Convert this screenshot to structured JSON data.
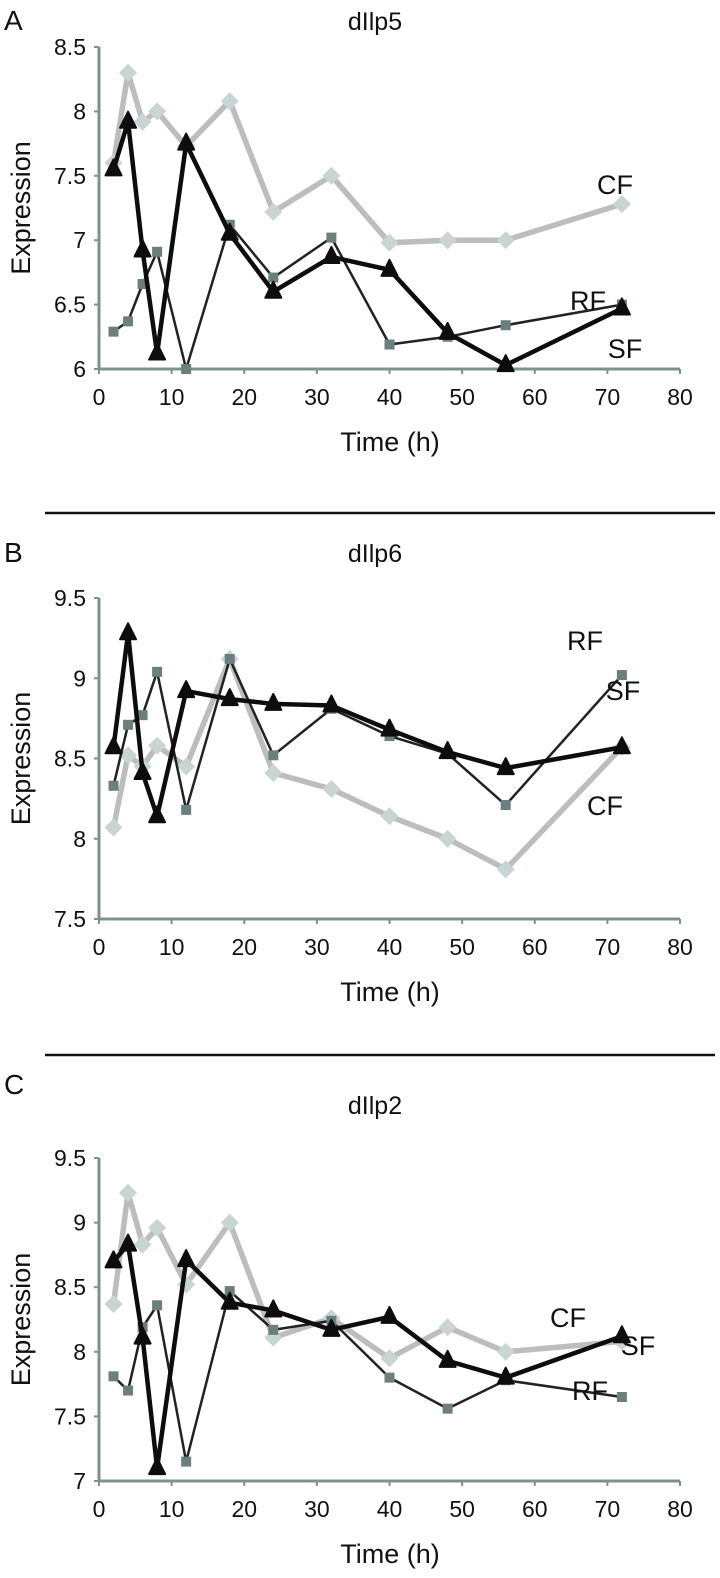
{
  "colors": {
    "CF_line": "#bdbdbd",
    "CF_marker": "#c9d5d5",
    "SF": "#0d0d0d",
    "RF_line": "#222222",
    "RF_marker": "#6c7f7f",
    "axis": "#7f9090"
  },
  "chart_data": [
    {
      "panel": "A",
      "type": "line",
      "title": "dIlp5",
      "xlabel": "Time (h)",
      "ylabel": "Expression",
      "xlim": [
        0,
        80
      ],
      "ylim": [
        6,
        8.5
      ],
      "xticks": [
        "0",
        "10",
        "20",
        "30",
        "40",
        "50",
        "60",
        "70",
        "80"
      ],
      "yticks": [
        "6",
        "6.5",
        "7",
        "7.5",
        "8",
        "8.5"
      ],
      "x": [
        2,
        4,
        6,
        8,
        12,
        18,
        24,
        32,
        40,
        48,
        56,
        72
      ],
      "series": [
        {
          "name": "CF",
          "values": [
            7.6,
            8.3,
            7.92,
            8.0,
            7.73,
            8.08,
            7.22,
            7.5,
            6.98,
            7.0,
            7.0,
            7.28
          ]
        },
        {
          "name": "SF",
          "values": [
            7.55,
            7.92,
            6.92,
            6.12,
            7.75,
            7.05,
            6.6,
            6.87,
            6.77,
            6.28,
            6.03,
            6.47
          ]
        },
        {
          "name": "RF",
          "values": [
            6.29,
            6.37,
            6.66,
            6.91,
            5.95,
            7.12,
            6.71,
            7.02,
            6.19,
            6.25,
            6.34,
            6.5
          ]
        }
      ]
    },
    {
      "panel": "B",
      "type": "line",
      "title": "dIlp6",
      "xlabel": "Time (h)",
      "ylabel": "Expression",
      "xlim": [
        0,
        80
      ],
      "ylim": [
        7.5,
        9.5
      ],
      "xticks": [
        "0",
        "10",
        "20",
        "30",
        "40",
        "50",
        "60",
        "70",
        "80"
      ],
      "yticks": [
        "7.5",
        "8",
        "8.5",
        "9",
        "9.5"
      ],
      "x": [
        2,
        4,
        6,
        8,
        12,
        18,
        24,
        32,
        40,
        48,
        56,
        72
      ],
      "series": [
        {
          "name": "CF",
          "values": [
            8.07,
            8.52,
            8.45,
            8.58,
            8.45,
            9.12,
            8.41,
            8.31,
            8.14,
            8.0,
            7.81,
            8.57
          ]
        },
        {
          "name": "SF",
          "values": [
            8.57,
            9.28,
            8.41,
            8.14,
            8.92,
            8.87,
            8.84,
            8.83,
            8.68,
            8.54,
            8.44,
            8.57
          ]
        },
        {
          "name": "RF",
          "values": [
            8.33,
            8.71,
            8.77,
            9.04,
            8.18,
            9.12,
            8.52,
            8.81,
            8.64,
            8.53,
            8.21,
            9.02
          ]
        }
      ]
    },
    {
      "panel": "C",
      "type": "line",
      "title": "dIlp2",
      "xlabel": "Time (h)",
      "ylabel": "Expression",
      "xlim": [
        0,
        80
      ],
      "ylim": [
        7,
        9.5
      ],
      "xticks": [
        "0",
        "10",
        "20",
        "30",
        "40",
        "50",
        "60",
        "70",
        "80"
      ],
      "yticks": [
        "7",
        "7.5",
        "8",
        "8.5",
        "9",
        "9.5"
      ],
      "x": [
        2,
        4,
        6,
        8,
        12,
        18,
        24,
        32,
        40,
        48,
        56,
        72
      ],
      "series": [
        {
          "name": "CF",
          "values": [
            8.37,
            9.23,
            8.83,
            8.96,
            8.52,
            9.0,
            8.11,
            8.26,
            7.95,
            8.19,
            8.0,
            8.08
          ]
        },
        {
          "name": "SF",
          "values": [
            8.7,
            8.83,
            8.11,
            7.1,
            8.71,
            8.38,
            8.32,
            8.17,
            8.27,
            7.93,
            7.8,
            8.12
          ]
        },
        {
          "name": "RF",
          "values": [
            7.81,
            7.7,
            8.19,
            8.36,
            7.15,
            8.47,
            8.17,
            8.24,
            7.8,
            7.56,
            7.78,
            7.65
          ]
        }
      ]
    }
  ]
}
